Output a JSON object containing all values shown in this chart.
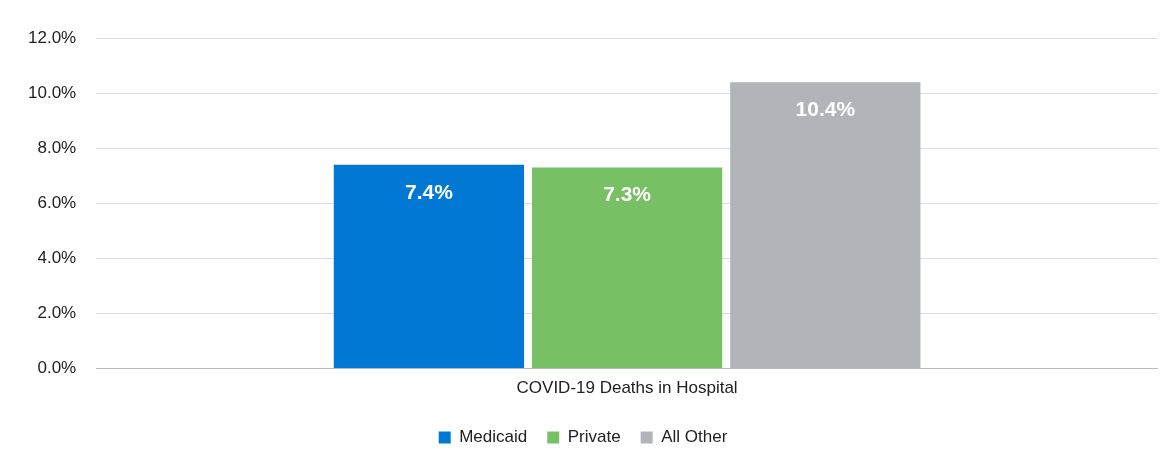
{
  "chart_data": {
    "type": "bar",
    "categories": [
      "COVID-19 Deaths in Hospital"
    ],
    "series": [
      {
        "name": "Medicaid",
        "color": "#0078d4",
        "values": [
          7.4
        ],
        "value_labels": [
          "7.4%"
        ]
      },
      {
        "name": "Private",
        "color": "#77c063",
        "values": [
          7.3
        ],
        "value_labels": [
          "7.3%"
        ]
      },
      {
        "name": "All Other",
        "color": "#b1b4b8",
        "values": [
          10.4
        ],
        "value_labels": [
          "10.4%"
        ]
      }
    ],
    "ylim": [
      0,
      12
    ],
    "yticks": [
      {
        "value": 0,
        "label": "0.0%"
      },
      {
        "value": 2,
        "label": "2.0%"
      },
      {
        "value": 4,
        "label": "4.0%"
      },
      {
        "value": 6,
        "label": "6.0%"
      },
      {
        "value": 8,
        "label": "8.0%"
      },
      {
        "value": 10,
        "label": "10.0%"
      },
      {
        "value": 12,
        "label": "12.0%"
      }
    ],
    "grid": "y",
    "legend": "bottom"
  }
}
